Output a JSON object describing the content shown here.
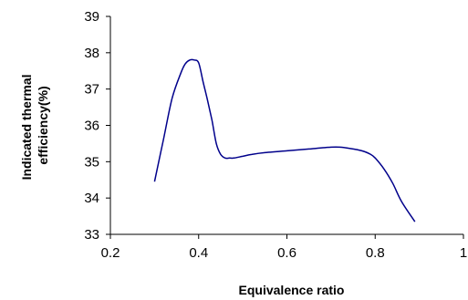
{
  "chart_data": {
    "type": "line",
    "title": "",
    "xlabel": "Equivalence ratio",
    "ylabel_lines": [
      "Indicated thermal",
      "efficiency(%)"
    ],
    "xlim": [
      0.2,
      1.0
    ],
    "ylim": [
      33,
      39
    ],
    "x_ticks": [
      0.2,
      0.4,
      0.6,
      0.8,
      1.0
    ],
    "x_tick_labels": [
      "0.2",
      "0.4",
      "0.6",
      "0.8",
      "1"
    ],
    "y_ticks": [
      33,
      34,
      35,
      36,
      37,
      38,
      39
    ],
    "y_tick_labels": [
      "33",
      "34",
      "35",
      "36",
      "37",
      "38",
      "39"
    ],
    "grid": false,
    "legend": "none",
    "line_color": "#00008b",
    "series": [
      {
        "x": [
          0.3,
          0.32,
          0.34,
          0.36,
          0.37,
          0.38,
          0.39,
          0.4,
          0.41,
          0.42,
          0.43,
          0.44,
          0.45,
          0.46,
          0.47,
          0.48,
          0.5,
          0.52,
          0.55,
          0.6,
          0.65,
          0.7,
          0.72,
          0.75,
          0.77,
          0.79,
          0.8,
          0.82,
          0.84,
          0.86,
          0.89
        ],
        "y": [
          34.45,
          35.6,
          36.75,
          37.45,
          37.7,
          37.8,
          37.8,
          37.72,
          37.2,
          36.7,
          36.15,
          35.5,
          35.2,
          35.1,
          35.1,
          35.1,
          35.15,
          35.2,
          35.25,
          35.3,
          35.35,
          35.4,
          35.4,
          35.35,
          35.3,
          35.2,
          35.1,
          34.8,
          34.4,
          33.9,
          33.35
        ]
      }
    ]
  }
}
